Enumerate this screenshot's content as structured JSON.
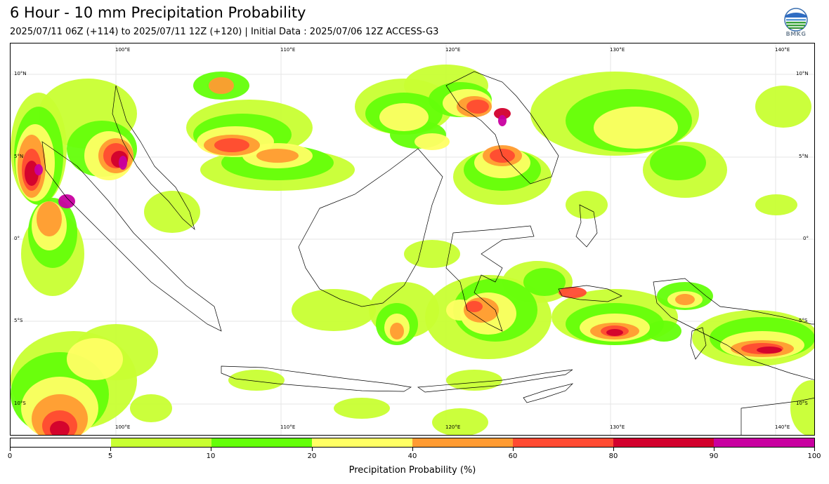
{
  "header": {
    "title": "6 Hour - 10 mm Precipitation Probability",
    "subtitle": "2025/07/11 06Z (+114) to 2025/07/11 12Z (+120) | Initial Data : 2025/07/06 12Z ACCESS-G3",
    "logo_text": "BMKG"
  },
  "map": {
    "lon_labels": [
      "100°E",
      "110°E",
      "120°E",
      "130°E",
      "140°E"
    ],
    "lat_labels": [
      "10°N",
      "5°N",
      "0°",
      "5°S",
      "10°S"
    ],
    "land_color": "#ffffff",
    "coast_color": "#000000",
    "grid_color": "#e6e6e6"
  },
  "colorbar": {
    "title": "Precipitation Probability (%)",
    "levels": [
      "0",
      "5",
      "10",
      "20",
      "40",
      "60",
      "80",
      "90",
      "100"
    ],
    "colors": [
      "#ffffff",
      "#c8ff32",
      "#64ff0a",
      "#ffff64",
      "#ff9b32",
      "#ff4b32",
      "#d2002d",
      "#c800a0"
    ]
  }
}
